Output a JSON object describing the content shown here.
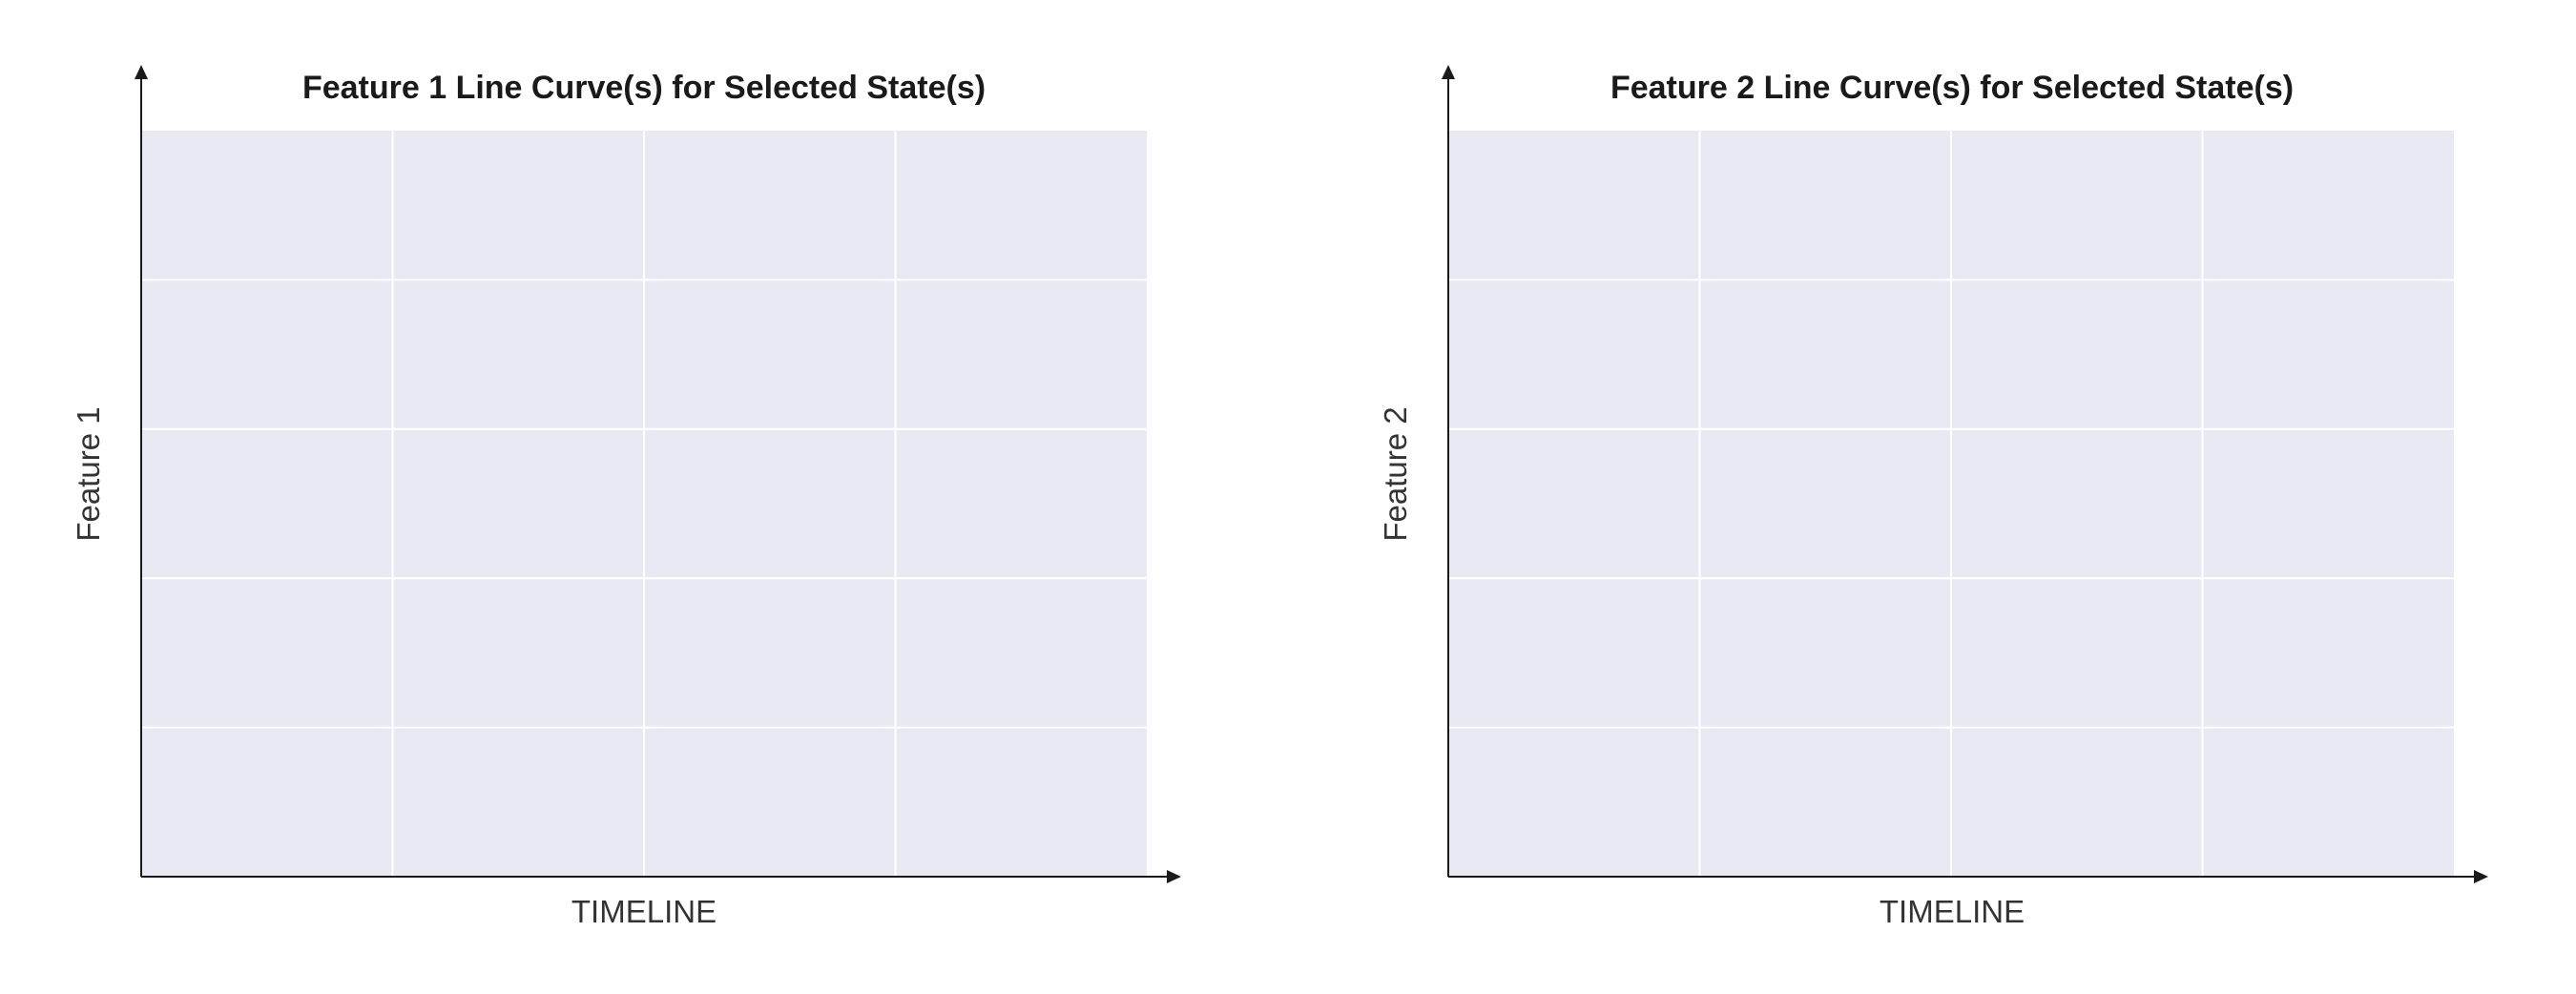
{
  "chart_data": [
    {
      "type": "line",
      "title": "Feature 1 Line Curve(s) for Selected State(s)",
      "xlabel": "TIMELINE",
      "ylabel": "Feature 1",
      "series": [],
      "grid": true,
      "grid_vertical_divisions": 4,
      "grid_horizontal_divisions": 5,
      "plot_background": "#e8e9f2",
      "grid_color": "#ffffff",
      "axis_color": "#1a1a1a"
    },
    {
      "type": "line",
      "title": "Feature 2 Line Curve(s) for Selected State(s)",
      "xlabel": "TIMELINE",
      "ylabel": "Feature 2",
      "series": [],
      "grid": true,
      "grid_vertical_divisions": 4,
      "grid_horizontal_divisions": 5,
      "plot_background": "#e8e9f2",
      "grid_color": "#ffffff",
      "axis_color": "#1a1a1a"
    }
  ]
}
